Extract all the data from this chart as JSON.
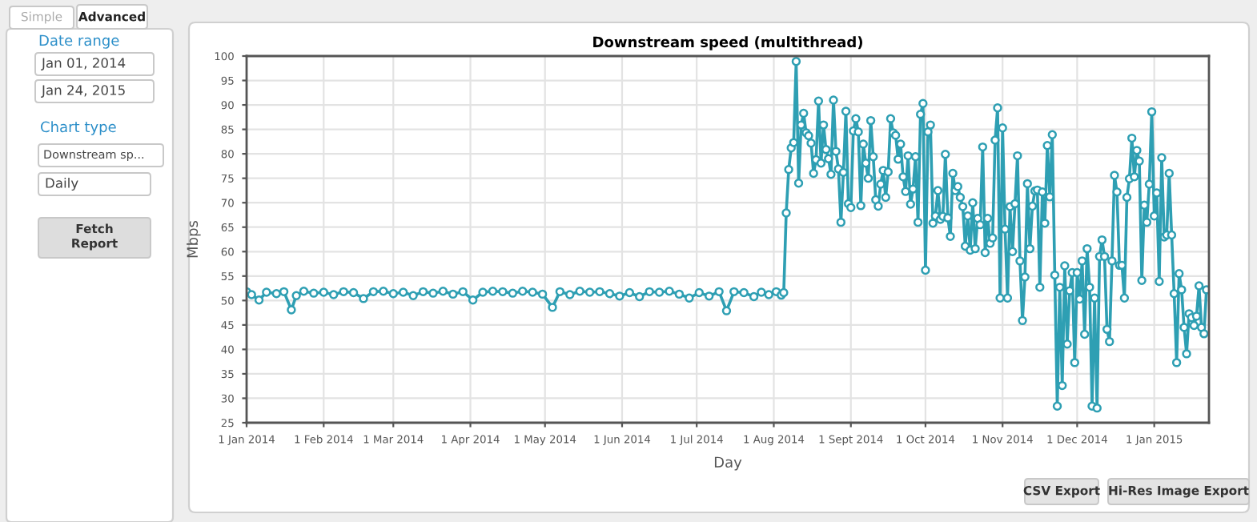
{
  "chart_data": [
    {
      "type": "line",
      "title": "Downstream speed (multithread)",
      "xlabel": "Day",
      "ylabel": "Mbps",
      "ylim": [
        25,
        100
      ],
      "yticks": [
        25,
        30,
        35,
        40,
        45,
        50,
        55,
        60,
        65,
        70,
        75,
        80,
        85,
        90,
        95,
        100
      ],
      "xlim": [
        "2014-01-01",
        "2015-01-23"
      ],
      "xticks": [
        {
          "value": "2014-01-01",
          "label": "1 Jan 2014"
        },
        {
          "value": "2014-02-01",
          "label": "1 Feb 2014"
        },
        {
          "value": "2014-03-01",
          "label": "1 Mar 2014"
        },
        {
          "value": "2014-04-01",
          "label": "1 Apr 2014"
        },
        {
          "value": "2014-05-01",
          "label": "1 May 2014"
        },
        {
          "value": "2014-06-01",
          "label": "1 Jun 2014"
        },
        {
          "value": "2014-07-01",
          "label": "1 Jul 2014"
        },
        {
          "value": "2014-08-01",
          "label": "1 Aug 2014"
        },
        {
          "value": "2014-09-01",
          "label": "1 Sept 2014"
        },
        {
          "value": "2014-10-01",
          "label": "1 Oct 2014"
        },
        {
          "value": "2014-11-01",
          "label": "1 Nov 2014"
        },
        {
          "value": "2014-12-01",
          "label": "1 Dec 2014"
        },
        {
          "value": "2015-01-01",
          "label": "1 Jan 2015"
        }
      ],
      "grid": true,
      "marker": "circle",
      "line_style": "solid",
      "series": [
        {
          "color": "#2e9fb3",
          "x": [
            "2014-01-01",
            "2014-01-03",
            "2014-01-06",
            "2014-01-09",
            "2014-01-13",
            "2014-01-16",
            "2014-01-19",
            "2014-01-21",
            "2014-01-24",
            "2014-01-28",
            "2014-02-01",
            "2014-02-05",
            "2014-02-09",
            "2014-02-13",
            "2014-02-17",
            "2014-02-21",
            "2014-02-25",
            "2014-03-01",
            "2014-03-05",
            "2014-03-09",
            "2014-03-13",
            "2014-03-17",
            "2014-03-21",
            "2014-03-25",
            "2014-03-29",
            "2014-04-02",
            "2014-04-06",
            "2014-04-10",
            "2014-04-14",
            "2014-04-18",
            "2014-04-22",
            "2014-04-26",
            "2014-04-30",
            "2014-05-04",
            "2014-05-07",
            "2014-05-11",
            "2014-05-15",
            "2014-05-19",
            "2014-05-23",
            "2014-05-27",
            "2014-05-31",
            "2014-06-04",
            "2014-06-08",
            "2014-06-12",
            "2014-06-16",
            "2014-06-20",
            "2014-06-24",
            "2014-06-28",
            "2014-07-02",
            "2014-07-06",
            "2014-07-10",
            "2014-07-13",
            "2014-07-16",
            "2014-07-20",
            "2014-07-24",
            "2014-07-27",
            "2014-07-30",
            "2014-08-02",
            "2014-08-04",
            "2014-08-05",
            "2014-08-06",
            "2014-08-07",
            "2014-08-08",
            "2014-08-09",
            "2014-08-10",
            "2014-08-11",
            "2014-08-12",
            "2014-08-13",
            "2014-08-14",
            "2014-08-15",
            "2014-08-16",
            "2014-08-17",
            "2014-08-18",
            "2014-08-19",
            "2014-08-20",
            "2014-08-21",
            "2014-08-22",
            "2014-08-23",
            "2014-08-24",
            "2014-08-25",
            "2014-08-26",
            "2014-08-27",
            "2014-08-28",
            "2014-08-29",
            "2014-08-30",
            "2014-08-31",
            "2014-09-01",
            "2014-09-02",
            "2014-09-03",
            "2014-09-04",
            "2014-09-05",
            "2014-09-06",
            "2014-09-07",
            "2014-09-08",
            "2014-09-09",
            "2014-09-10",
            "2014-09-11",
            "2014-09-12",
            "2014-09-13",
            "2014-09-14",
            "2014-09-15",
            "2014-09-16",
            "2014-09-17",
            "2014-09-18",
            "2014-09-19",
            "2014-09-20",
            "2014-09-21",
            "2014-09-22",
            "2014-09-23",
            "2014-09-24",
            "2014-09-25",
            "2014-09-26",
            "2014-09-27",
            "2014-09-28",
            "2014-09-29",
            "2014-09-30",
            "2014-10-01",
            "2014-10-02",
            "2014-10-03",
            "2014-10-04",
            "2014-10-05",
            "2014-10-06",
            "2014-10-07",
            "2014-10-08",
            "2014-10-09",
            "2014-10-10",
            "2014-10-11",
            "2014-10-12",
            "2014-10-13",
            "2014-10-14",
            "2014-10-15",
            "2014-10-16",
            "2014-10-17",
            "2014-10-18",
            "2014-10-19",
            "2014-10-20",
            "2014-10-21",
            "2014-10-22",
            "2014-10-23",
            "2014-10-24",
            "2014-10-25",
            "2014-10-26",
            "2014-10-27",
            "2014-10-28",
            "2014-10-29",
            "2014-10-30",
            "2014-10-31",
            "2014-11-01",
            "2014-11-02",
            "2014-11-03",
            "2014-11-04",
            "2014-11-05",
            "2014-11-06",
            "2014-11-07",
            "2014-11-08",
            "2014-11-09",
            "2014-11-10",
            "2014-11-11",
            "2014-11-12",
            "2014-11-13",
            "2014-11-14",
            "2014-11-15",
            "2014-11-16",
            "2014-11-17",
            "2014-11-18",
            "2014-11-19",
            "2014-11-20",
            "2014-11-21",
            "2014-11-22",
            "2014-11-23",
            "2014-11-24",
            "2014-11-25",
            "2014-11-26",
            "2014-11-27",
            "2014-11-28",
            "2014-11-29",
            "2014-11-30",
            "2014-12-01",
            "2014-12-02",
            "2014-12-03",
            "2014-12-04",
            "2014-12-05",
            "2014-12-06",
            "2014-12-07",
            "2014-12-08",
            "2014-12-09",
            "2014-12-10",
            "2014-12-11",
            "2014-12-12",
            "2014-12-13",
            "2014-12-14",
            "2014-12-15",
            "2014-12-16",
            "2014-12-17",
            "2014-12-18",
            "2014-12-19",
            "2014-12-20",
            "2014-12-21",
            "2014-12-22",
            "2014-12-23",
            "2014-12-24",
            "2014-12-25",
            "2014-12-26",
            "2014-12-27",
            "2014-12-28",
            "2014-12-29",
            "2014-12-30",
            "2014-12-31",
            "2015-01-01",
            "2015-01-02",
            "2015-01-03",
            "2015-01-04",
            "2015-01-05",
            "2015-01-06",
            "2015-01-07",
            "2015-01-08",
            "2015-01-09",
            "2015-01-10",
            "2015-01-11",
            "2015-01-12",
            "2015-01-13",
            "2015-01-14",
            "2015-01-15",
            "2015-01-16",
            "2015-01-17",
            "2015-01-18",
            "2015-01-19",
            "2015-01-20",
            "2015-01-21",
            "2015-01-22"
          ],
          "values": [
            51.8,
            51.2,
            50.1,
            51.7,
            51.4,
            51.8,
            48.1,
            51.0,
            51.9,
            51.5,
            51.7,
            51.2,
            51.8,
            51.6,
            50.4,
            51.8,
            51.9,
            51.4,
            51.7,
            51.0,
            51.8,
            51.5,
            51.9,
            51.3,
            51.8,
            50.1,
            51.7,
            51.9,
            51.8,
            51.5,
            51.9,
            51.7,
            51.3,
            48.6,
            51.8,
            51.2,
            51.9,
            51.7,
            51.8,
            51.4,
            50.9,
            51.6,
            50.8,
            51.8,
            51.7,
            51.9,
            51.3,
            50.5,
            51.6,
            50.9,
            51.8,
            47.9,
            51.8,
            51.6,
            50.8,
            51.7,
            51.2,
            51.8,
            51.1,
            51.6,
            67.9,
            76.8,
            81.2,
            82.3,
            98.9,
            74,
            85.9,
            88.3,
            84.3,
            83.7,
            82.2,
            76,
            78.8,
            90.8,
            78.1,
            85.9,
            80.9,
            79,
            75.8,
            91,
            80.5,
            76.9,
            66,
            76.2,
            88.7,
            69.8,
            69,
            84.7,
            87.2,
            84.5,
            69.4,
            82,
            78.1,
            75,
            86.8,
            79.4,
            70.6,
            69.3,
            73.8,
            76.6,
            71.1,
            76.3,
            87.2,
            84.3,
            83.8,
            78.9,
            82,
            75.3,
            72.3,
            79.6,
            69.7,
            72.8,
            79.4,
            66,
            88.1,
            90.3,
            56.2,
            84.5,
            85.9,
            65.8,
            67.3,
            72.5,
            66.6,
            67.2,
            79.9,
            66.9,
            63.1,
            76,
            72.5,
            73.3,
            71.1,
            69.2,
            61.1,
            67.3,
            60.3,
            70,
            60.6,
            66.8,
            65.5,
            81.4,
            59.8,
            66.8,
            61.7,
            62.8,
            82.8,
            89.4,
            50.5,
            85.3,
            64.6,
            50.5,
            69.2,
            60,
            69.8,
            79.6,
            58.1,
            45.9,
            54.8,
            73.9,
            60.6,
            69.3,
            72.4,
            72.6,
            52.7,
            72.2,
            65.8,
            81.7,
            71.2,
            83.9,
            55.2,
            28.4,
            52.7,
            32.6,
            57.1,
            41.1,
            52,
            55.7,
            37.3,
            55.7,
            50.3,
            58.1,
            43.1,
            60.6,
            52.7,
            28.4,
            50.5,
            28,
            59,
            62.4,
            59,
            44.1,
            41.6,
            58.1,
            75.6,
            72.2,
            57.2,
            57.2,
            50.5,
            71.1,
            74.9,
            83.2,
            75.3,
            80.7,
            78.5,
            54.1,
            69.5,
            66,
            73.8,
            88.6,
            67.3,
            72,
            53.9,
            79.2,
            63,
            63.4,
            76,
            63.4,
            51.4,
            37.3,
            55.5,
            52.2,
            44.5,
            39.1,
            47.3,
            46.5,
            44.9,
            46.8,
            53,
            44.5,
            43.2,
            52.2
          ]
        }
      ]
    },
    {
      "type": "other",
      "annotations": [
        "Simple",
        "Advanced",
        "Date range",
        "Jan 01, 2014",
        "Jan 24, 2015",
        "Chart type",
        "Downstream sp...",
        "Daily",
        "Fetch\nReport",
        "CSV Export",
        "Hi-Res Image Export"
      ]
    }
  ]
}
